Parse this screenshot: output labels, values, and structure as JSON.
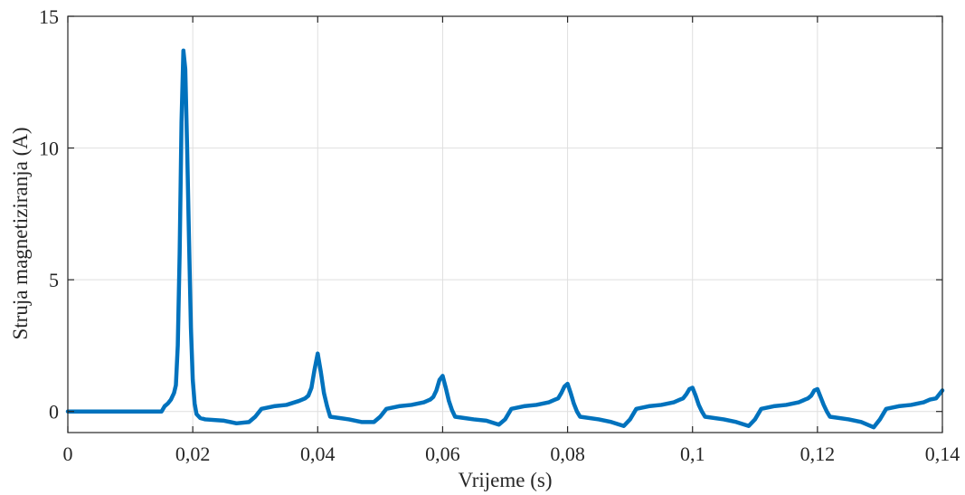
{
  "chart_data": {
    "type": "line",
    "title": "",
    "xlabel": "Vrijeme (s)",
    "ylabel": "Struja magnetiziranja (A)",
    "xlim": [
      0,
      0.14
    ],
    "ylim": [
      -0.8,
      15
    ],
    "xticks": [
      0,
      0.02,
      0.04,
      0.06,
      0.08,
      0.1,
      0.12,
      0.14
    ],
    "xtick_labels": [
      "0",
      "0,02",
      "0,04",
      "0,06",
      "0,08",
      "0,1",
      "0,12",
      "0,14"
    ],
    "yticks": [
      0,
      5,
      10,
      15
    ],
    "ytick_labels": [
      "0",
      "5",
      "10",
      "15"
    ],
    "grid": true,
    "series": [
      {
        "color": "#0072BD",
        "x": [
          0,
          0.015,
          0.0155,
          0.016,
          0.0165,
          0.017,
          0.0173,
          0.0176,
          0.0179,
          0.0182,
          0.0185,
          0.0188,
          0.0191,
          0.0194,
          0.0197,
          0.02,
          0.0203,
          0.0206,
          0.0212,
          0.022,
          0.025,
          0.027,
          0.029,
          0.03,
          0.031,
          0.033,
          0.035,
          0.037,
          0.038,
          0.0385,
          0.039,
          0.0395,
          0.04,
          0.0405,
          0.041,
          0.0415,
          0.042,
          0.045,
          0.047,
          0.049,
          0.05,
          0.051,
          0.053,
          0.055,
          0.057,
          0.058,
          0.0585,
          0.059,
          0.0595,
          0.06,
          0.0605,
          0.061,
          0.0615,
          0.062,
          0.065,
          0.067,
          0.069,
          0.07,
          0.071,
          0.073,
          0.075,
          0.077,
          0.078,
          0.0785,
          0.079,
          0.0795,
          0.08,
          0.0805,
          0.081,
          0.0815,
          0.082,
          0.085,
          0.087,
          0.089,
          0.09,
          0.091,
          0.093,
          0.095,
          0.097,
          0.098,
          0.0985,
          0.099,
          0.0995,
          0.1,
          0.1005,
          0.101,
          0.1015,
          0.102,
          0.105,
          0.107,
          0.109,
          0.11,
          0.111,
          0.113,
          0.115,
          0.117,
          0.118,
          0.1185,
          0.119,
          0.1195,
          0.12,
          0.1205,
          0.121,
          0.1215,
          0.122,
          0.125,
          0.127,
          0.129,
          0.13,
          0.131,
          0.133,
          0.135,
          0.137,
          0.138,
          0.139,
          0.1395,
          0.14
        ],
        "y": [
          0,
          0,
          0.2,
          0.3,
          0.45,
          0.7,
          1.0,
          2.5,
          6.0,
          11.0,
          13.7,
          13.0,
          10.0,
          6.5,
          3.2,
          1.2,
          0.3,
          -0.1,
          -0.25,
          -0.3,
          -0.35,
          -0.45,
          -0.4,
          -0.2,
          0.1,
          0.2,
          0.25,
          0.4,
          0.5,
          0.6,
          0.9,
          1.6,
          2.2,
          1.5,
          0.7,
          0.2,
          -0.2,
          -0.3,
          -0.4,
          -0.4,
          -0.2,
          0.1,
          0.2,
          0.25,
          0.35,
          0.45,
          0.55,
          0.8,
          1.2,
          1.35,
          0.9,
          0.4,
          0.05,
          -0.2,
          -0.3,
          -0.35,
          -0.5,
          -0.3,
          0.1,
          0.2,
          0.25,
          0.35,
          0.45,
          0.5,
          0.7,
          0.95,
          1.05,
          0.7,
          0.3,
          0.0,
          -0.2,
          -0.3,
          -0.4,
          -0.55,
          -0.3,
          0.1,
          0.2,
          0.25,
          0.35,
          0.45,
          0.5,
          0.65,
          0.85,
          0.9,
          0.6,
          0.25,
          0.0,
          -0.2,
          -0.3,
          -0.4,
          -0.55,
          -0.3,
          0.1,
          0.2,
          0.25,
          0.35,
          0.45,
          0.5,
          0.6,
          0.8,
          0.85,
          0.55,
          0.25,
          0.0,
          -0.2,
          -0.3,
          -0.4,
          -0.6,
          -0.3,
          0.1,
          0.2,
          0.25,
          0.35,
          0.45,
          0.5,
          0.65,
          0.8
        ]
      }
    ]
  }
}
